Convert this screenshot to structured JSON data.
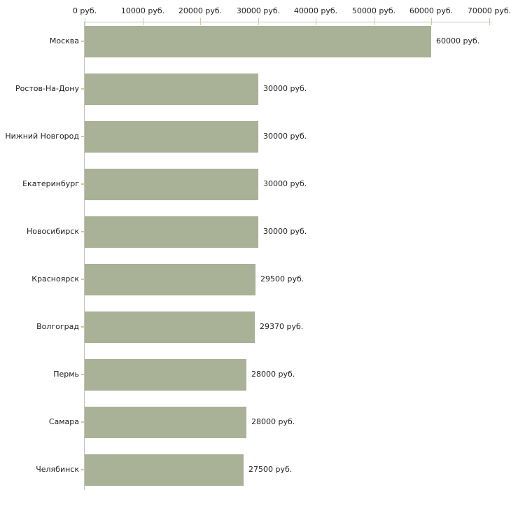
{
  "chart_data": {
    "type": "bar",
    "orientation": "horizontal",
    "title": "",
    "categories": [
      "Москва",
      "Ростов-На-Дону",
      "Нижний Новгород",
      "Екатеринбург",
      "Новосибирск",
      "Красноярск",
      "Волгоград",
      "Пермь",
      "Самара",
      "Челябинск"
    ],
    "values": [
      60000,
      30000,
      30000,
      30000,
      30000,
      29500,
      29370,
      28000,
      28000,
      27500
    ],
    "value_labels": [
      "60000 руб.",
      "30000 руб.",
      "30000 руб.",
      "30000 руб.",
      "30000 руб.",
      "29500 руб.",
      "29370 руб.",
      "28000 руб.",
      "28000 руб.",
      "27500 руб."
    ],
    "x_axis": {
      "position": "top",
      "range": [
        0,
        70000
      ],
      "ticks": [
        0,
        10000,
        20000,
        30000,
        40000,
        50000,
        60000,
        70000
      ],
      "tick_labels": [
        "0 руб.",
        "10000 руб.",
        "20000 руб.",
        "30000 руб.",
        "40000 руб.",
        "50000 руб.",
        "60000 руб.",
        "70000 руб."
      ]
    },
    "legend": "none",
    "grid": false,
    "colors": {
      "bar": "#a9b196",
      "axis_line": "#c3c3bd",
      "tick_mark": "#cccc99",
      "text": "#222222",
      "background": "#ffffff"
    }
  }
}
